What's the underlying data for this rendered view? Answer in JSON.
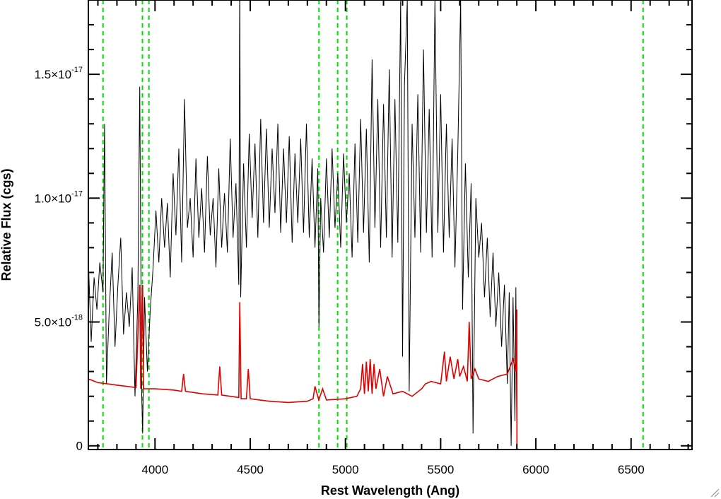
{
  "chart_data": {
    "type": "line",
    "xlabel": "Rest Wavelength (Ang)",
    "ylabel": "Relative Flux (cgs)",
    "xlim": [
      3650,
      6820
    ],
    "ylim": [
      -1.5e-19,
      1.8e-17
    ],
    "x_ticks": [
      {
        "value": 4000,
        "label": "4000"
      },
      {
        "value": 4500,
        "label": "4500"
      },
      {
        "value": 5000,
        "label": "5000"
      },
      {
        "value": 5500,
        "label": "5500"
      },
      {
        "value": 6000,
        "label": "6000"
      },
      {
        "value": 6500,
        "label": "6500"
      }
    ],
    "y_ticks": [
      {
        "value": 0,
        "mant": "0",
        "exp": ""
      },
      {
        "value": 5e-18,
        "mant": "5.0×10",
        "exp": "-18"
      },
      {
        "value": 1e-17,
        "mant": "1.0×10",
        "exp": "-17"
      },
      {
        "value": 1.5e-17,
        "mant": "1.5×10",
        "exp": "-17"
      }
    ],
    "x_minor_step": 100,
    "y_minor_step": 1e-18,
    "grid": false,
    "colors": {
      "spectrum": "#000000",
      "error": "#e00000",
      "lines": "#00e000"
    },
    "vertical_lines": [
      3727,
      3934,
      3968,
      4861,
      4959,
      5007,
      6563
    ],
    "series": [
      {
        "color": "#000000",
        "points": [
          [
            3650,
            7.5e-18
          ],
          [
            3665,
            4.2e-18
          ],
          [
            3680,
            6.8e-18
          ],
          [
            3695,
            5.5e-18
          ],
          [
            3710,
            7.4e-18
          ],
          [
            3727,
            6.2e-18
          ],
          [
            3735,
            1.3e-17
          ],
          [
            3745,
            2.5e-18
          ],
          [
            3760,
            5.5e-18
          ],
          [
            3775,
            7.8e-18
          ],
          [
            3790,
            4e-18
          ],
          [
            3805,
            6.5e-18
          ],
          [
            3820,
            8.4e-18
          ],
          [
            3835,
            4.5e-18
          ],
          [
            3850,
            6.2e-18
          ],
          [
            3865,
            4.8e-18
          ],
          [
            3880,
            7.2e-18
          ],
          [
            3895,
            2e-18
          ],
          [
            3910,
            6e-18
          ],
          [
            3920,
            1.45e-17
          ],
          [
            3930,
            2.2e-18
          ],
          [
            3935,
            5e-19
          ],
          [
            3945,
            6e-18
          ],
          [
            3960,
            3e-18
          ],
          [
            3975,
            5.5e-18
          ],
          [
            3990,
            7.2e-18
          ],
          [
            4005,
            9.5e-18
          ],
          [
            4020,
            7.4e-18
          ],
          [
            4035,
            1e-17
          ],
          [
            4050,
            8e-18
          ],
          [
            4065,
            9.8e-18
          ],
          [
            4080,
            6.8e-18
          ],
          [
            4095,
            1.1e-17
          ],
          [
            4110,
            8.5e-18
          ],
          [
            4125,
            1.2e-17
          ],
          [
            4140,
            7.4e-18
          ],
          [
            4155,
            1.4e-17
          ],
          [
            4170,
            8.8e-18
          ],
          [
            4185,
            1e-17
          ],
          [
            4200,
            7.6e-18
          ],
          [
            4215,
            1.16e-17
          ],
          [
            4230,
            8.4e-18
          ],
          [
            4245,
            1.04e-17
          ],
          [
            4260,
            7.8e-18
          ],
          [
            4275,
            1.17e-17
          ],
          [
            4290,
            8.5e-18
          ],
          [
            4305,
            1e-17
          ],
          [
            4320,
            7.2e-18
          ],
          [
            4335,
            1.12e-17
          ],
          [
            4350,
            8e-18
          ],
          [
            4365,
            1.02e-17
          ],
          [
            4380,
            7.8e-18
          ],
          [
            4395,
            1.24e-17
          ],
          [
            4410,
            8.4e-18
          ],
          [
            4425,
            1.06e-17
          ],
          [
            4440,
            6.5e-18
          ],
          [
            4445,
            1.9e-17
          ],
          [
            4450,
            6e-18
          ],
          [
            4465,
            1.14e-17
          ],
          [
            4480,
            8e-18
          ],
          [
            4495,
            1.26e-17
          ],
          [
            4510,
            9.2e-18
          ],
          [
            4525,
            1.22e-17
          ],
          [
            4540,
            8.4e-18
          ],
          [
            4555,
            1.32e-17
          ],
          [
            4570,
            9e-18
          ],
          [
            4585,
            1.28e-17
          ],
          [
            4600,
            8.8e-18
          ],
          [
            4615,
            1.2e-17
          ],
          [
            4630,
            9.4e-18
          ],
          [
            4645,
            1.3e-17
          ],
          [
            4660,
            8.6e-18
          ],
          [
            4675,
            1.2e-17
          ],
          [
            4690,
            9e-18
          ],
          [
            4705,
            1.25e-17
          ],
          [
            4720,
            8.2e-18
          ],
          [
            4735,
            1.18e-17
          ],
          [
            4750,
            9e-18
          ],
          [
            4765,
            1.24e-17
          ],
          [
            4780,
            8.6e-18
          ],
          [
            4795,
            1.3e-17
          ],
          [
            4810,
            8.4e-18
          ],
          [
            4825,
            1.16e-17
          ],
          [
            4840,
            8e-18
          ],
          [
            4855,
            1.12e-17
          ],
          [
            4861,
            4.8e-18
          ],
          [
            4870,
            1e-17
          ],
          [
            4885,
            7.8e-18
          ],
          [
            4900,
            1.16e-17
          ],
          [
            4915,
            8.4e-18
          ],
          [
            4930,
            1.2e-17
          ],
          [
            4945,
            8.8e-18
          ],
          [
            4960,
            1.1e-17
          ],
          [
            4975,
            8e-18
          ],
          [
            4990,
            1.18e-17
          ],
          [
            5005,
            9e-18
          ],
          [
            5020,
            1.1e-17
          ],
          [
            5035,
            7.6e-18
          ],
          [
            5050,
            1.22e-17
          ],
          [
            5065,
            8.2e-18
          ],
          [
            5080,
            1.32e-17
          ],
          [
            5095,
            8.6e-18
          ],
          [
            5110,
            1.28e-17
          ],
          [
            5125,
            7.4e-18
          ],
          [
            5140,
            1.56e-17
          ],
          [
            5155,
            8.8e-18
          ],
          [
            5170,
            1.4e-17
          ],
          [
            5185,
            8e-18
          ],
          [
            5200,
            1.38e-17
          ],
          [
            5215,
            8.4e-18
          ],
          [
            5230,
            1.52e-17
          ],
          [
            5245,
            7.6e-18
          ],
          [
            5260,
            1.4e-17
          ],
          [
            5275,
            8.2e-18
          ],
          [
            5290,
            1.8e-17
          ],
          [
            5300,
            3.6e-18
          ],
          [
            5310,
            1.46e-17
          ],
          [
            5325,
            1.8e-17
          ],
          [
            5335,
            2.2e-18
          ],
          [
            5350,
            1.3e-17
          ],
          [
            5365,
            8.4e-18
          ],
          [
            5380,
            1.42e-17
          ],
          [
            5395,
            7.8e-18
          ],
          [
            5410,
            1.6e-17
          ],
          [
            5425,
            8.6e-18
          ],
          [
            5440,
            1.36e-17
          ],
          [
            5455,
            7.6e-18
          ],
          [
            5470,
            1.8e-17
          ],
          [
            5485,
            8.6e-18
          ],
          [
            5500,
            1.42e-17
          ],
          [
            5515,
            7.8e-18
          ],
          [
            5530,
            1.3e-17
          ],
          [
            5545,
            8.4e-18
          ],
          [
            5560,
            1.24e-17
          ],
          [
            5575,
            7.2e-18
          ],
          [
            5590,
            1.18e-17
          ],
          [
            5605,
            1.8e-17
          ],
          [
            5615,
            5.5e-18
          ],
          [
            5630,
            1.14e-17
          ],
          [
            5645,
            6.8e-18
          ],
          [
            5660,
            1.06e-17
          ],
          [
            5670,
            5e-19
          ],
          [
            5685,
            1e-17
          ],
          [
            5700,
            7.6e-18
          ],
          [
            5715,
            9e-18
          ],
          [
            5730,
            6e-18
          ],
          [
            5745,
            8.4e-18
          ],
          [
            5760,
            5.2e-18
          ],
          [
            5775,
            7.8e-18
          ],
          [
            5790,
            4.8e-18
          ],
          [
            5805,
            7e-18
          ],
          [
            5820,
            4e-18
          ],
          [
            5835,
            6.5e-18
          ],
          [
            5850,
            2.5e-18
          ],
          [
            5860,
            6.2e-18
          ],
          [
            5870,
            0.0
          ],
          [
            5880,
            6e-18
          ],
          [
            5890,
            1e-18
          ],
          [
            5895,
            6.4e-18
          ],
          [
            5900,
            0.0
          ],
          [
            5901,
            -1.5e-19
          ],
          [
            6820,
            -1.5e-19
          ]
        ]
      },
      {
        "color": "#e00000",
        "points": [
          [
            3650,
            2.7e-18
          ],
          [
            3700,
            2.55e-18
          ],
          [
            3750,
            2.5e-18
          ],
          [
            3800,
            2.45e-18
          ],
          [
            3850,
            2.4e-18
          ],
          [
            3900,
            2.35e-18
          ],
          [
            3920,
            6.5e-18
          ],
          [
            3925,
            2.3e-18
          ],
          [
            3935,
            6.5e-18
          ],
          [
            3940,
            2.3e-18
          ],
          [
            4000,
            2.3e-18
          ],
          [
            4100,
            2.25e-18
          ],
          [
            4140,
            2.2e-18
          ],
          [
            4150,
            2.9e-18
          ],
          [
            4160,
            2.2e-18
          ],
          [
            4250,
            2.1e-18
          ],
          [
            4330,
            2.05e-18
          ],
          [
            4340,
            3.2e-18
          ],
          [
            4350,
            2.05e-18
          ],
          [
            4440,
            1.95e-18
          ],
          [
            4445,
            5.8e-18
          ],
          [
            4452,
            1.9e-18
          ],
          [
            4480,
            1.9e-18
          ],
          [
            4490,
            3.1e-18
          ],
          [
            4500,
            1.9e-18
          ],
          [
            4600,
            1.8e-18
          ],
          [
            4700,
            1.75e-18
          ],
          [
            4800,
            1.8e-18
          ],
          [
            4830,
            1.9e-18
          ],
          [
            4840,
            2.4e-18
          ],
          [
            4860,
            1.85e-18
          ],
          [
            4880,
            2.3e-18
          ],
          [
            4900,
            1.85e-18
          ],
          [
            5000,
            1.9e-18
          ],
          [
            5060,
            2e-18
          ],
          [
            5080,
            2.3e-18
          ],
          [
            5090,
            3.3e-18
          ],
          [
            5100,
            2.1e-18
          ],
          [
            5110,
            3.4e-18
          ],
          [
            5120,
            2.2e-18
          ],
          [
            5130,
            3.5e-18
          ],
          [
            5140,
            2.1e-18
          ],
          [
            5150,
            3.3e-18
          ],
          [
            5160,
            2.3e-18
          ],
          [
            5180,
            3.1e-18
          ],
          [
            5200,
            2e-18
          ],
          [
            5220,
            2.8e-18
          ],
          [
            5250,
            2.1e-18
          ],
          [
            5300,
            2.2e-18
          ],
          [
            5350,
            2e-18
          ],
          [
            5400,
            2.3e-18
          ],
          [
            5420,
            2.5e-18
          ],
          [
            5450,
            2.6e-18
          ],
          [
            5500,
            2.5e-18
          ],
          [
            5520,
            3.8e-18
          ],
          [
            5530,
            2.6e-18
          ],
          [
            5550,
            3.6e-18
          ],
          [
            5570,
            2.7e-18
          ],
          [
            5590,
            3.5e-18
          ],
          [
            5600,
            2.8e-18
          ],
          [
            5620,
            3.2e-18
          ],
          [
            5640,
            2.6e-18
          ],
          [
            5650,
            5e-18
          ],
          [
            5660,
            2.7e-18
          ],
          [
            5680,
            3.1e-18
          ],
          [
            5700,
            2.7e-18
          ],
          [
            5750,
            2.6e-18
          ],
          [
            5800,
            2.8e-18
          ],
          [
            5850,
            2.9e-18
          ],
          [
            5880,
            3.5e-18
          ],
          [
            5895,
            3e-18
          ],
          [
            5900,
            5.5e-18
          ],
          [
            5901,
            -1.5e-19
          ],
          [
            6820,
            -1.5e-19
          ]
        ]
      }
    ]
  }
}
